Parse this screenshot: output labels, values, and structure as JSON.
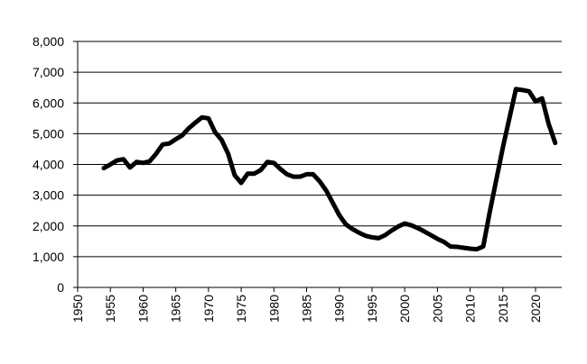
{
  "chart_data": {
    "type": "line",
    "title": "",
    "xlabel": "",
    "ylabel": "",
    "xlim": [
      1950,
      2024
    ],
    "ylim": [
      0,
      8000
    ],
    "grid": true,
    "legend": "none",
    "colors": {
      "line": "#000000",
      "grid": "#000000",
      "background": "#ffffff"
    },
    "y_ticks": [
      0,
      1000,
      2000,
      3000,
      4000,
      5000,
      6000,
      7000,
      8000
    ],
    "y_tick_labels": [
      "0",
      "1,000",
      "2,000",
      "3,000",
      "4,000",
      "5,000",
      "6,000",
      "7,000",
      "8,000"
    ],
    "x_ticks": [
      1950,
      1955,
      1960,
      1965,
      1970,
      1975,
      1980,
      1985,
      1990,
      1995,
      2000,
      2005,
      2010,
      2015,
      2020
    ],
    "x_tick_labels": [
      "1950",
      "1955",
      "1960",
      "1965",
      "1970",
      "1975",
      "1980",
      "1985",
      "1990",
      "1995",
      "2000",
      "2005",
      "2010",
      "2015",
      "2020"
    ],
    "series": [
      {
        "x": [
          1954,
          1955,
          1956,
          1957,
          1958,
          1959,
          1960,
          1961,
          1962,
          1963,
          1964,
          1965,
          1966,
          1967,
          1968,
          1969,
          1970,
          1971,
          1972,
          1973,
          1974,
          1975,
          1976,
          1977,
          1978,
          1979,
          1980,
          1981,
          1982,
          1983,
          1984,
          1985,
          1986,
          1987,
          1988,
          1989,
          1990,
          1991,
          1992,
          1993,
          1994,
          1995,
          1996,
          1997,
          1998,
          1999,
          2000,
          2001,
          2002,
          2003,
          2004,
          2005,
          2006,
          2007,
          2008,
          2009,
          2010,
          2011,
          2012,
          2013,
          2014,
          2015,
          2016,
          2017,
          2018,
          2019,
          2020,
          2021,
          2022,
          2023
        ],
        "y": [
          3880,
          4000,
          4130,
          4170,
          3900,
          4080,
          4050,
          4100,
          4350,
          4650,
          4680,
          4820,
          4950,
          5180,
          5360,
          5530,
          5500,
          5050,
          4800,
          4350,
          3650,
          3400,
          3700,
          3700,
          3820,
          4080,
          4050,
          3850,
          3680,
          3600,
          3600,
          3680,
          3680,
          3450,
          3150,
          2750,
          2350,
          2050,
          1900,
          1780,
          1680,
          1630,
          1600,
          1700,
          1850,
          1980,
          2080,
          2020,
          1930,
          1820,
          1700,
          1580,
          1480,
          1330,
          1320,
          1290,
          1260,
          1240,
          1330,
          2450,
          3500,
          4550,
          5500,
          6450,
          6420,
          6380,
          6050,
          6150,
          5320,
          4700
        ]
      }
    ]
  }
}
